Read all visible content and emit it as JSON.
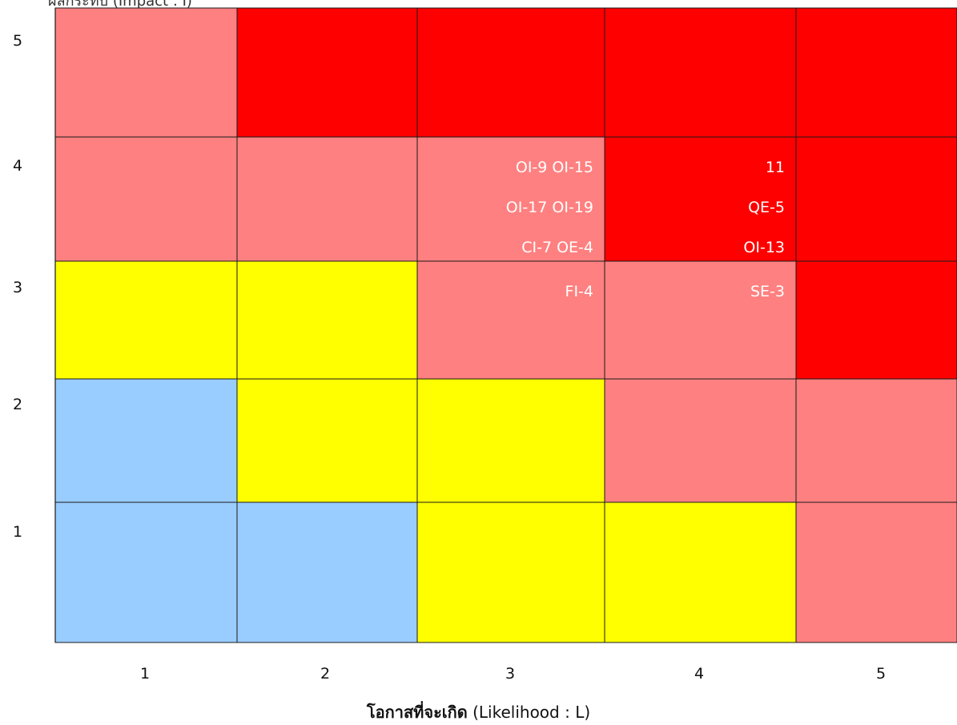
{
  "chart_data": {
    "type": "heatmap",
    "title": "",
    "ylabel": "ผลกระทบ (Impact : I)",
    "xlabel": {
      "bold": "โอกาสที่จะเกิด",
      "normal": "(Likelihood : L)"
    },
    "x_categories": [
      "1",
      "2",
      "3",
      "4",
      "5"
    ],
    "y_categories": [
      "1",
      "2",
      "3",
      "4",
      "5"
    ],
    "colors": {
      "low": "#99ccff",
      "medium": "#ffff00",
      "high": "#ff8080",
      "very_high": "#ff0000"
    },
    "cells": [
      {
        "impact": 5,
        "likelihood": 1,
        "level": "high",
        "items": []
      },
      {
        "impact": 5,
        "likelihood": 2,
        "level": "very_high",
        "items": []
      },
      {
        "impact": 5,
        "likelihood": 3,
        "level": "very_high",
        "items": []
      },
      {
        "impact": 5,
        "likelihood": 4,
        "level": "very_high",
        "items": []
      },
      {
        "impact": 5,
        "likelihood": 5,
        "level": "very_high",
        "items": []
      },
      {
        "impact": 4,
        "likelihood": 1,
        "level": "high",
        "items": []
      },
      {
        "impact": 4,
        "likelihood": 2,
        "level": "high",
        "items": []
      },
      {
        "impact": 4,
        "likelihood": 3,
        "level": "high",
        "items": [
          "OI-9  OI-15",
          "OI-17  OI-19",
          "CI-7  OE-4"
        ]
      },
      {
        "impact": 4,
        "likelihood": 4,
        "level": "very_high",
        "items": [
          "11",
          "QE-5",
          "OI-13"
        ]
      },
      {
        "impact": 4,
        "likelihood": 5,
        "level": "very_high",
        "items": []
      },
      {
        "impact": 3,
        "likelihood": 1,
        "level": "medium",
        "items": []
      },
      {
        "impact": 3,
        "likelihood": 2,
        "level": "medium",
        "items": []
      },
      {
        "impact": 3,
        "likelihood": 3,
        "level": "high",
        "items": [
          "FI-4"
        ]
      },
      {
        "impact": 3,
        "likelihood": 4,
        "level": "high",
        "items": [
          "SE-3"
        ]
      },
      {
        "impact": 3,
        "likelihood": 5,
        "level": "very_high",
        "items": []
      },
      {
        "impact": 2,
        "likelihood": 1,
        "level": "low",
        "items": []
      },
      {
        "impact": 2,
        "likelihood": 2,
        "level": "medium",
        "items": []
      },
      {
        "impact": 2,
        "likelihood": 3,
        "level": "medium",
        "items": []
      },
      {
        "impact": 2,
        "likelihood": 4,
        "level": "high",
        "items": []
      },
      {
        "impact": 2,
        "likelihood": 5,
        "level": "high",
        "items": []
      },
      {
        "impact": 1,
        "likelihood": 1,
        "level": "low",
        "items": []
      },
      {
        "impact": 1,
        "likelihood": 2,
        "level": "low",
        "items": []
      },
      {
        "impact": 1,
        "likelihood": 3,
        "level": "medium",
        "items": []
      },
      {
        "impact": 1,
        "likelihood": 4,
        "level": "medium",
        "items": []
      },
      {
        "impact": 1,
        "likelihood": 5,
        "level": "high",
        "items": []
      }
    ]
  }
}
